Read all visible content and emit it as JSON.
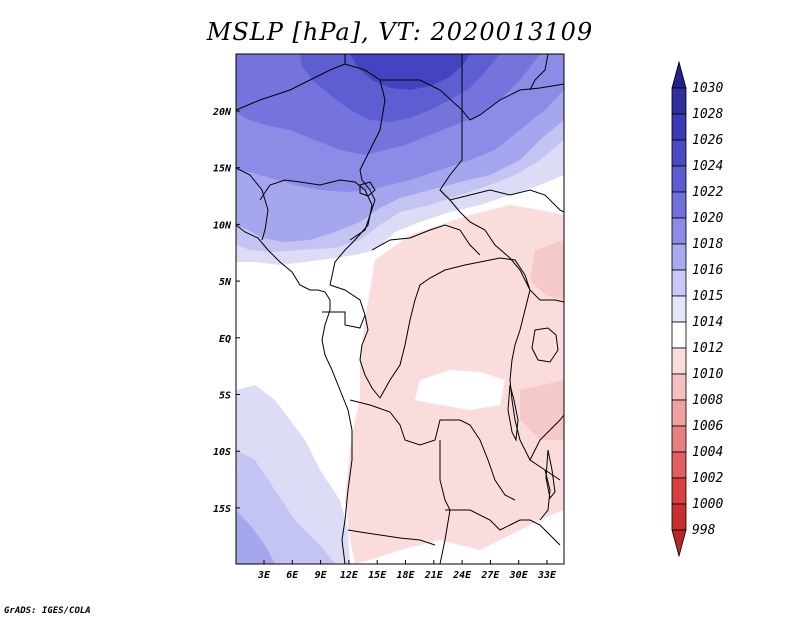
{
  "title": "MSLP [hPa], VT: 2020013109",
  "credit": "GrADS: IGES/COLA",
  "map": {
    "lon_ticks": [
      "3E",
      "6E",
      "9E",
      "12E",
      "15E",
      "18E",
      "21E",
      "24E",
      "27E",
      "30E",
      "33E"
    ],
    "lat_ticks": [
      "20N",
      "15N",
      "10N",
      "5N",
      "EQ",
      "5S",
      "10S",
      "15S"
    ]
  },
  "colorbar": {
    "levels": [
      {
        "value": "1030",
        "color": "#2a2790"
      },
      {
        "value": "1028",
        "color": "#2f2fa0"
      },
      {
        "value": "1026",
        "color": "#3a3ab4"
      },
      {
        "value": "1024",
        "color": "#4a4ac4"
      },
      {
        "value": "1022",
        "color": "#5c5cd0"
      },
      {
        "value": "1020",
        "color": "#7070dc"
      },
      {
        "value": "1018",
        "color": "#8c8ce8"
      },
      {
        "value": "1016",
        "color": "#aaaaf0"
      },
      {
        "value": "1015",
        "color": "#c8c8f6"
      },
      {
        "value": "1014",
        "color": "#e6e6fb"
      },
      {
        "value": "1012",
        "color": "#ffffff"
      },
      {
        "value": "1010",
        "color": "#fbdcdc"
      },
      {
        "value": "1008",
        "color": "#f6c0c0"
      },
      {
        "value": "1006",
        "color": "#f0a0a0"
      },
      {
        "value": "1004",
        "color": "#e88080"
      },
      {
        "value": "1002",
        "color": "#e06060"
      },
      {
        "value": "1000",
        "color": "#d84040"
      },
      {
        "value": "998",
        "color": "#c83030"
      }
    ],
    "top_arrow_color": "#222288",
    "bottom_arrow_color": "#b82828"
  },
  "fields": {
    "low_pink": "#fbdcdc",
    "mid_pink": "#f6c9c9",
    "white": "#ffffff",
    "pale_blue": "#dcdcf6",
    "light_blue": "#c4c4f2",
    "blue1": "#a6a6ee",
    "blue2": "#8c8ce6",
    "blue3": "#7474dc",
    "blue4": "#5e5ed2",
    "blue5": "#4444c0"
  }
}
